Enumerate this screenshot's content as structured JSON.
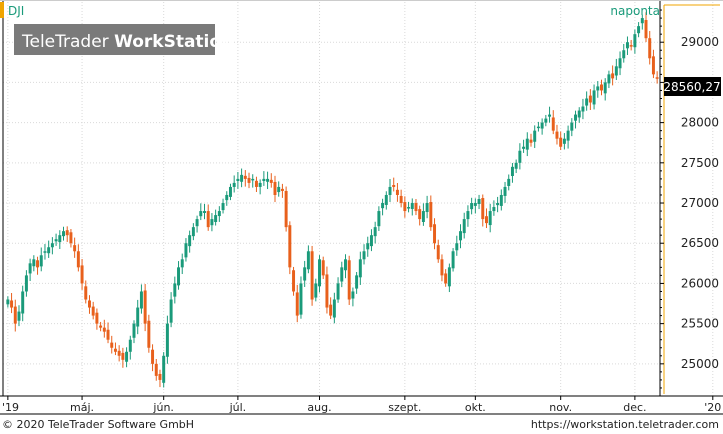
{
  "header": {
    "symbol": "DJI",
    "watermark_light": "TeleTrader ",
    "watermark_bold": "WorkStation",
    "period": "naponta"
  },
  "last_price_label": "28560,27",
  "footer": {
    "copyright": "© 2020 TeleTrader Software GmbH",
    "url": "https://workstation.teletrader.com"
  },
  "colors": {
    "up": "#1a9a7a",
    "down": "#e8601c",
    "accent": "#f0a500",
    "grid": "#d9d9d9",
    "period_text": "#1a9a7a"
  },
  "chart_data": {
    "type": "candlestick",
    "series_name": "DJI",
    "frequency": "naponta",
    "ylim": [
      24600,
      29500
    ],
    "y_ticks": [
      25000,
      25500,
      26000,
      26500,
      27000,
      27500,
      28000,
      28500,
      29000
    ],
    "y_tick_labels": [
      "25000",
      "25500",
      "26000",
      "26500",
      "27000",
      "27500",
      "28000",
      "28500",
      "29000"
    ],
    "x_ticks": [
      {
        "label": "'19",
        "index": 0
      },
      {
        "label": "máj.",
        "index": 20
      },
      {
        "label": "jún.",
        "index": 42
      },
      {
        "label": "júl.",
        "index": 62
      },
      {
        "label": "aug.",
        "index": 84
      },
      {
        "label": "szept.",
        "index": 107
      },
      {
        "label": "okt.",
        "index": 126
      },
      {
        "label": "nov.",
        "index": 149
      },
      {
        "label": "dec.",
        "index": 169
      },
      {
        "label": "'20",
        "index": 190
      }
    ],
    "last_value": 28560.27,
    "closes": [
      25800,
      25700,
      25500,
      25650,
      25900,
      26100,
      26250,
      26300,
      26200,
      26350,
      26400,
      26450,
      26500,
      26550,
      26600,
      26650,
      26600,
      26500,
      26400,
      26200,
      26000,
      25800,
      25700,
      25600,
      25500,
      25450,
      25400,
      25300,
      25200,
      25150,
      25100,
      25050,
      25150,
      25300,
      25500,
      25700,
      25900,
      25500,
      25200,
      25000,
      24850,
      24800,
      25100,
      25500,
      25800,
      26000,
      26200,
      26300,
      26500,
      26600,
      26700,
      26800,
      26900,
      26900,
      26700,
      26800,
      26850,
      26900,
      27000,
      27100,
      27200,
      27250,
      27300,
      27350,
      27300,
      27250,
      27300,
      27200,
      27250,
      27300,
      27300,
      27250,
      27100,
      27200,
      27150,
      26700,
      26200,
      25900,
      25600,
      26000,
      26200,
      26400,
      25800,
      26000,
      26300,
      26100,
      25700,
      25600,
      25800,
      26000,
      26200,
      26300,
      25800,
      25900,
      26100,
      26300,
      26400,
      26500,
      26600,
      26700,
      26900,
      27000,
      27100,
      27200,
      27200,
      27100,
      27000,
      26900,
      26950,
      27000,
      26900,
      26800,
      26900,
      27000,
      26700,
      26500,
      26300,
      26100,
      26000,
      26200,
      26400,
      26500,
      26650,
      26800,
      26900,
      27000,
      27000,
      27050,
      26800,
      26750,
      26900,
      26950,
      27000,
      27100,
      27200,
      27300,
      27450,
      27500,
      27650,
      27700,
      27800,
      27750,
      27900,
      27950,
      28000,
      28050,
      28100,
      27900,
      27800,
      27700,
      27800,
      27900,
      28000,
      28100,
      28150,
      28200,
      28300,
      28250,
      28400,
      28450,
      28400,
      28500,
      28600,
      28550,
      28700,
      28800,
      28900,
      29000,
      28950,
      29100,
      29200,
      29300,
      29050,
      28800,
      28600,
      28560
    ]
  }
}
